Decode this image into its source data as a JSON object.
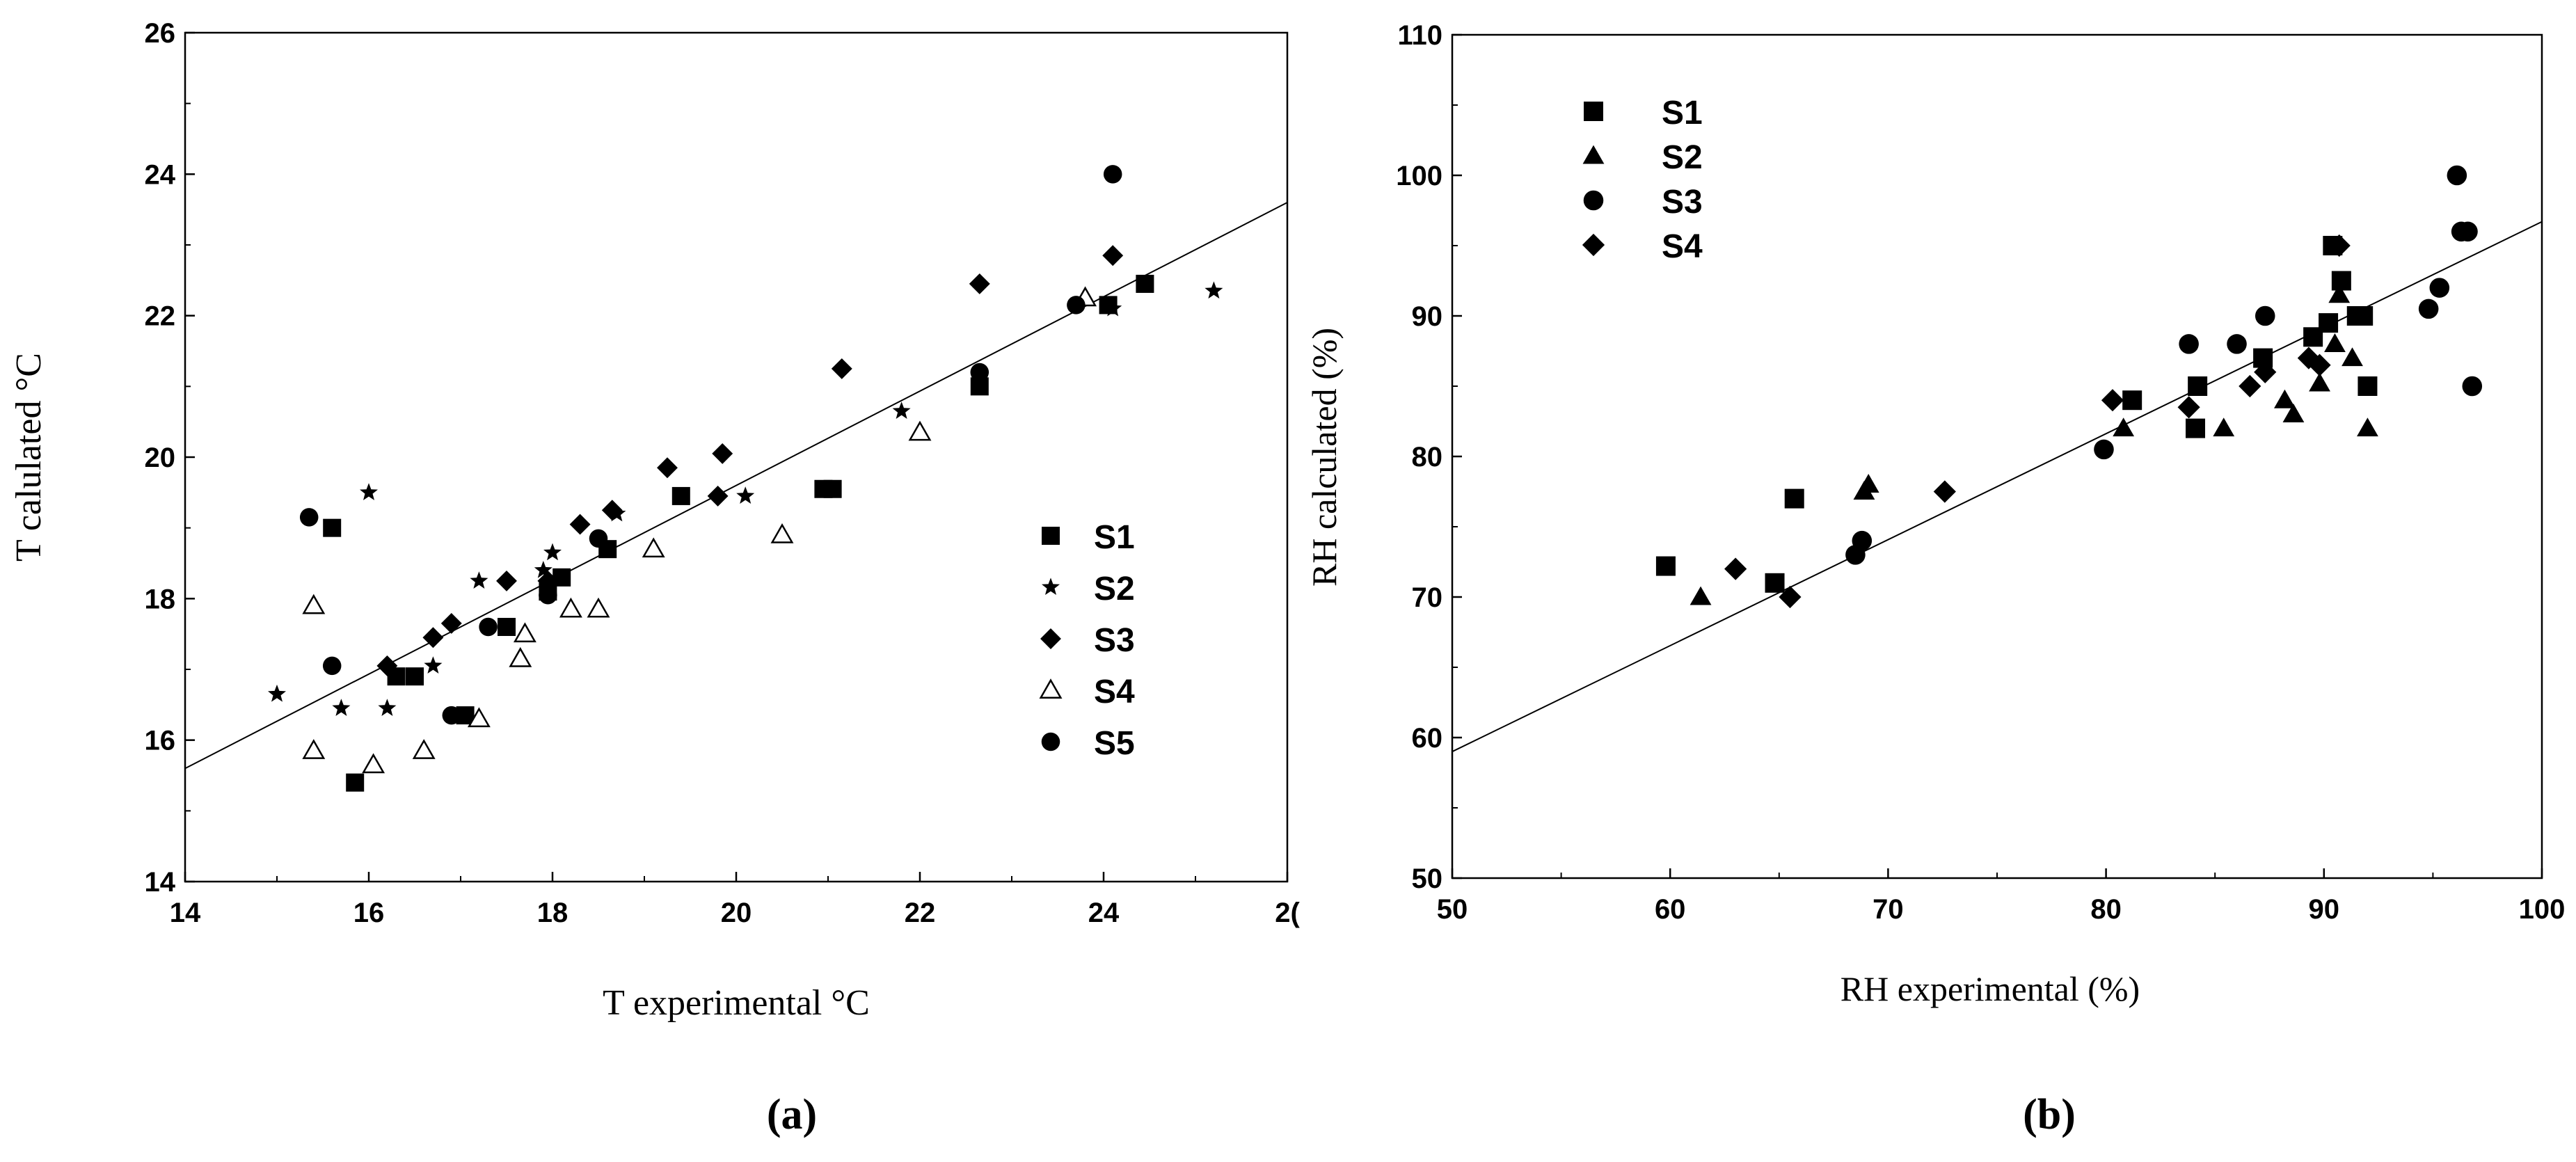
{
  "chart_data": [
    {
      "type": "scatter",
      "panel_label": "(a)",
      "xlabel": "T experimental °C",
      "ylabel": "T calulated °C",
      "xlim": [
        14,
        26
      ],
      "ylim": [
        14,
        26
      ],
      "x_ticks": [
        "14",
        "16",
        "18",
        "20",
        "22",
        "24",
        "2("
      ],
      "y_ticks": [
        "14",
        "16",
        "18",
        "20",
        "22",
        "24",
        "26"
      ],
      "grid": false,
      "legend_position": "lower-right",
      "fit_line": {
        "x": [
          14,
          26
        ],
        "y": [
          15.6,
          23.6
        ]
      },
      "series": [
        {
          "name": "S1",
          "marker": "square",
          "points": [
            [
              15.6,
              19.0
            ],
            [
              15.85,
              15.4
            ],
            [
              16.3,
              16.9
            ],
            [
              16.5,
              16.9
            ],
            [
              17.05,
              16.35
            ],
            [
              17.5,
              17.6
            ],
            [
              17.95,
              18.1
            ],
            [
              18.1,
              18.3
            ],
            [
              18.6,
              18.7
            ],
            [
              19.4,
              19.45
            ],
            [
              20.95,
              19.55
            ],
            [
              21.05,
              19.55
            ],
            [
              22.65,
              21.0
            ],
            [
              24.05,
              22.15
            ],
            [
              24.45,
              22.45
            ]
          ]
        },
        {
          "name": "S2",
          "marker": "star",
          "points": [
            [
              15.0,
              16.65
            ],
            [
              15.7,
              16.45
            ],
            [
              16.0,
              19.5
            ],
            [
              16.2,
              16.45
            ],
            [
              16.7,
              17.05
            ],
            [
              17.2,
              18.25
            ],
            [
              17.9,
              18.4
            ],
            [
              18.0,
              18.65
            ],
            [
              18.7,
              19.2
            ],
            [
              20.1,
              19.45
            ],
            [
              21.8,
              20.65
            ],
            [
              24.1,
              22.1
            ],
            [
              25.2,
              22.35
            ]
          ]
        },
        {
          "name": "S3",
          "marker": "diamond",
          "points": [
            [
              16.2,
              17.05
            ],
            [
              16.7,
              17.45
            ],
            [
              16.9,
              17.65
            ],
            [
              17.5,
              18.25
            ],
            [
              17.95,
              18.25
            ],
            [
              18.3,
              19.05
            ],
            [
              18.65,
              19.25
            ],
            [
              19.25,
              19.85
            ],
            [
              19.8,
              19.45
            ],
            [
              19.85,
              20.05
            ],
            [
              21.15,
              21.25
            ],
            [
              22.65,
              22.45
            ],
            [
              24.1,
              22.85
            ]
          ]
        },
        {
          "name": "S4",
          "marker": "triangle-open",
          "points": [
            [
              15.4,
              17.9
            ],
            [
              15.4,
              15.85
            ],
            [
              16.05,
              15.65
            ],
            [
              16.6,
              15.85
            ],
            [
              17.2,
              16.3
            ],
            [
              17.7,
              17.5
            ],
            [
              17.65,
              17.15
            ],
            [
              18.2,
              17.85
            ],
            [
              18.5,
              17.85
            ],
            [
              19.1,
              18.7
            ],
            [
              20.5,
              18.9
            ],
            [
              22.0,
              20.35
            ],
            [
              23.8,
              22.25
            ]
          ]
        },
        {
          "name": "S5",
          "marker": "circle",
          "points": [
            [
              15.35,
              19.15
            ],
            [
              15.6,
              17.05
            ],
            [
              16.9,
              16.35
            ],
            [
              17.3,
              17.6
            ],
            [
              17.95,
              18.05
            ],
            [
              18.5,
              18.85
            ],
            [
              22.65,
              21.2
            ],
            [
              23.7,
              22.15
            ],
            [
              24.1,
              24.0
            ]
          ]
        }
      ]
    },
    {
      "type": "scatter",
      "panel_label": "(b)",
      "xlabel": "RH experimental (%)",
      "ylabel": "RH calculated (%)",
      "xlim": [
        50,
        100
      ],
      "ylim": [
        50,
        110
      ],
      "x_ticks": [
        "50",
        "60",
        "70",
        "80",
        "90",
        "100"
      ],
      "y_ticks": [
        "50",
        "60",
        "70",
        "80",
        "90",
        "100",
        "110"
      ],
      "grid": false,
      "legend_position": "top-left",
      "fit_line": {
        "x": [
          50,
          100
        ],
        "y": [
          59.0,
          96.7
        ]
      },
      "series": [
        {
          "name": "S1",
          "marker": "square",
          "points": [
            [
              59.8,
              72.2
            ],
            [
              64.8,
              71.0
            ],
            [
              65.7,
              77.0
            ],
            [
              84.1,
              82.0
            ],
            [
              84.2,
              85.0
            ],
            [
              81.2,
              84.0
            ],
            [
              87.2,
              87.0
            ],
            [
              89.5,
              88.5
            ],
            [
              90.2,
              89.5
            ],
            [
              90.4,
              95.0
            ],
            [
              90.8,
              92.5
            ],
            [
              91.5,
              90.0
            ],
            [
              91.8,
              90.0
            ],
            [
              92.0,
              85.0
            ]
          ]
        },
        {
          "name": "S2",
          "marker": "triangle",
          "points": [
            [
              61.4,
              70.0
            ],
            [
              68.9,
              77.5
            ],
            [
              69.1,
              78.0
            ],
            [
              80.8,
              82.0
            ],
            [
              85.4,
              82.0
            ],
            [
              88.2,
              84.0
            ],
            [
              88.6,
              83.0
            ],
            [
              89.8,
              85.2
            ],
            [
              90.5,
              88.0
            ],
            [
              90.7,
              91.5
            ],
            [
              91.3,
              87.0
            ],
            [
              92.0,
              82.0
            ]
          ]
        },
        {
          "name": "S3",
          "marker": "circle",
          "points": [
            [
              68.5,
              73.0
            ],
            [
              68.8,
              74.0
            ],
            [
              79.9,
              80.5
            ],
            [
              83.8,
              88.0
            ],
            [
              86.0,
              88.0
            ],
            [
              87.3,
              90.0
            ],
            [
              94.8,
              90.5
            ],
            [
              95.3,
              92.0
            ],
            [
              96.1,
              100.0
            ],
            [
              96.3,
              96.0
            ],
            [
              96.6,
              96.0
            ],
            [
              96.8,
              85.0
            ]
          ]
        },
        {
          "name": "S4",
          "marker": "diamond",
          "points": [
            [
              63.0,
              72.0
            ],
            [
              65.5,
              70.0
            ],
            [
              72.6,
              77.5
            ],
            [
              80.3,
              84.0
            ],
            [
              83.8,
              83.5
            ],
            [
              86.6,
              85.0
            ],
            [
              87.3,
              86.0
            ],
            [
              89.3,
              87.0
            ],
            [
              89.8,
              86.5
            ],
            [
              90.7,
              95.0
            ]
          ]
        }
      ]
    }
  ]
}
